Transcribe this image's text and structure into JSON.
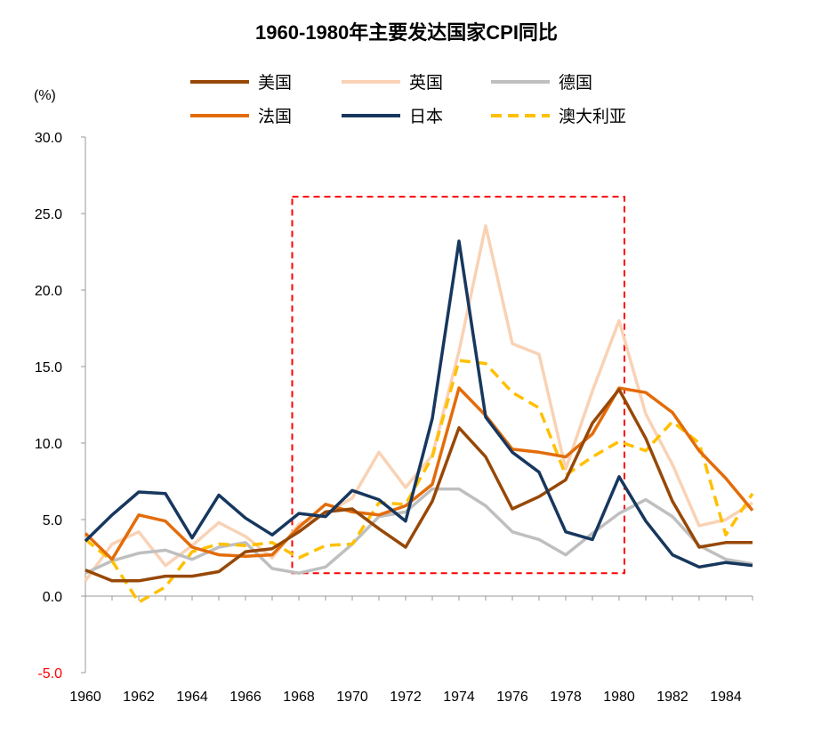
{
  "chart_data": {
    "type": "line",
    "title": "1960-1980年主要发达国家CPI同比",
    "ylabel": "(%)",
    "xlabel": "",
    "ylim": [
      -5,
      30
    ],
    "xlim": [
      1960,
      1985
    ],
    "yticks": [
      "30.0",
      "25.0",
      "20.0",
      "15.0",
      "10.0",
      "5.0",
      "0.0",
      "-5.0"
    ],
    "yticks_values": [
      30,
      25,
      20,
      15,
      10,
      5,
      0,
      -5
    ],
    "xticks": [
      "1960",
      "1962",
      "1964",
      "1966",
      "1968",
      "1970",
      "1972",
      "1974",
      "1976",
      "1978",
      "1980",
      "1982",
      "1984"
    ],
    "xticks_values": [
      1960,
      1962,
      1964,
      1966,
      1968,
      1970,
      1972,
      1974,
      1976,
      1978,
      1980,
      1982,
      1984
    ],
    "legend_position": "top",
    "grid": false,
    "x": [
      1960,
      1961,
      1962,
      1963,
      1964,
      1965,
      1966,
      1967,
      1968,
      1969,
      1970,
      1971,
      1972,
      1973,
      1974,
      1975,
      1976,
      1977,
      1978,
      1979,
      1980,
      1981,
      1982,
      1983,
      1984,
      1985
    ],
    "series": [
      {
        "name": "英国",
        "color": "#F9D2B5",
        "dash": "solid",
        "values": [
          1.0,
          3.4,
          4.2,
          2.0,
          3.3,
          4.8,
          3.9,
          2.5,
          4.7,
          5.4,
          6.4,
          9.4,
          7.1,
          9.2,
          16.0,
          24.2,
          16.5,
          15.8,
          8.3,
          13.4,
          18.0,
          11.9,
          8.6,
          4.6,
          5.0,
          6.1
        ]
      },
      {
        "name": "德国",
        "color": "#BFBFBF",
        "dash": "solid",
        "values": [
          1.5,
          2.3,
          2.8,
          3.0,
          2.4,
          3.2,
          3.5,
          1.8,
          1.5,
          1.9,
          3.4,
          5.2,
          5.5,
          7.0,
          7.0,
          5.9,
          4.2,
          3.7,
          2.7,
          4.1,
          5.4,
          6.3,
          5.2,
          3.3,
          2.4,
          2.1
        ]
      },
      {
        "name": "澳大利亚",
        "color": "#FFC000",
        "dash": "dashed",
        "values": [
          3.7,
          2.3,
          -0.4,
          0.6,
          2.9,
          3.4,
          3.3,
          3.5,
          2.5,
          3.3,
          3.4,
          6.1,
          6.0,
          9.1,
          15.4,
          15.2,
          13.3,
          12.3,
          7.9,
          9.1,
          10.1,
          9.5,
          11.4,
          10.0,
          4.0,
          6.7
        ]
      },
      {
        "name": "法国",
        "color": "#E36C0A",
        "dash": "solid",
        "values": [
          4.1,
          2.4,
          5.3,
          4.9,
          3.2,
          2.7,
          2.6,
          2.7,
          4.5,
          6.0,
          5.5,
          5.3,
          5.9,
          7.3,
          13.6,
          11.8,
          9.6,
          9.4,
          9.1,
          10.6,
          13.6,
          13.3,
          12.0,
          9.5,
          7.7,
          5.6
        ]
      },
      {
        "name": "美国",
        "color": "#974806",
        "dash": "solid",
        "values": [
          1.7,
          1.0,
          1.0,
          1.3,
          1.3,
          1.6,
          2.9,
          3.1,
          4.2,
          5.5,
          5.7,
          4.4,
          3.2,
          6.2,
          11.0,
          9.1,
          5.7,
          6.5,
          7.6,
          11.3,
          13.5,
          10.3,
          6.2,
          3.2,
          3.5,
          3.5
        ]
      },
      {
        "name": "日本",
        "color": "#17375E",
        "dash": "solid",
        "values": [
          3.6,
          5.3,
          6.8,
          6.7,
          3.8,
          6.6,
          5.1,
          4.0,
          5.4,
          5.2,
          6.9,
          6.3,
          4.9,
          11.6,
          23.2,
          11.7,
          9.4,
          8.1,
          4.2,
          3.7,
          7.8,
          4.9,
          2.7,
          1.9,
          2.2,
          2.0
        ]
      }
    ],
    "legend_order": [
      "美国",
      "英国",
      "德国",
      "法国",
      "日本",
      "澳大利亚"
    ],
    "annotations": [
      {
        "type": "box",
        "style": "red-dashed",
        "x_from": 1967.75,
        "x_to": 1980.2,
        "y_from": 1.5,
        "y_to": 26.1
      }
    ]
  }
}
